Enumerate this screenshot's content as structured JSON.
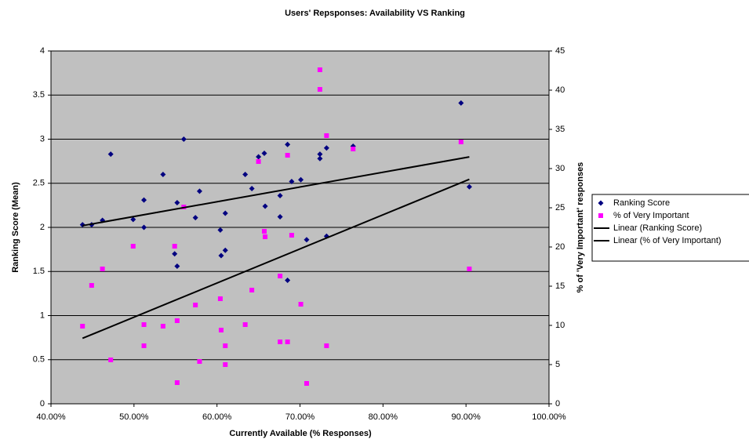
{
  "chart_data": {
    "type": "scatter",
    "title": "Users' Repsponses: Availability VS Ranking",
    "x_label": "Currently Available (% Responses)",
    "y_label": "Ranking Score (Mean)",
    "y2_label": "% of 'Very Important' responses",
    "x": [
      43.8,
      44.9,
      46.2,
      47.2,
      49.9,
      51.2,
      51.2,
      53.5,
      55.2,
      54.9,
      55.2,
      56.0,
      57.4,
      57.9,
      60.4,
      60.5,
      61.0,
      61.0,
      63.4,
      64.2,
      65.0,
      65.7,
      65.8,
      67.6,
      67.6,
      68.5,
      68.5,
      69.0,
      70.1,
      70.8,
      72.4,
      72.4,
      73.2,
      73.2,
      76.4,
      89.4,
      90.4
    ],
    "series": [
      {
        "name": "Ranking Score",
        "color": "#000080",
        "marker": "diamond",
        "values": [
          2.03,
          2.03,
          2.08,
          2.83,
          2.09,
          2.31,
          2.0,
          2.6,
          2.28,
          1.7,
          1.56,
          3.0,
          2.11,
          2.41,
          1.97,
          1.68,
          2.16,
          1.74,
          2.6,
          2.44,
          2.8,
          2.84,
          2.24,
          2.36,
          2.12,
          2.94,
          1.4,
          2.52,
          2.54,
          1.86,
          2.83,
          2.78,
          2.9,
          1.9,
          2.92,
          3.41,
          2.46
        ]
      },
      {
        "name": "% of Very Important",
        "color": "#ff00ff",
        "marker": "square",
        "axis": "y2",
        "values": [
          9.9,
          15.1,
          17.2,
          5.6,
          20.1,
          10.1,
          7.4,
          9.9,
          10.6,
          20.1,
          2.7,
          25.1,
          12.6,
          5.4,
          13.4,
          9.4,
          7.4,
          5.0,
          10.1,
          14.5,
          30.9,
          22.0,
          21.3,
          16.3,
          7.9,
          31.7,
          7.9,
          21.5,
          12.7,
          2.6,
          42.6,
          40.1,
          34.2,
          7.4,
          32.5,
          33.4,
          17.2
        ]
      }
    ],
    "trendlines": [
      {
        "name": "Linear (Ranking Score)",
        "series": 0,
        "color": "#000000"
      },
      {
        "name": "Linear (% of Very Important)",
        "series": 1,
        "color": "#000000"
      }
    ],
    "xlim": [
      40,
      100
    ],
    "xticks": [
      {
        "value": 40,
        "label": "40.00%"
      },
      {
        "value": 50,
        "label": "50.00%"
      },
      {
        "value": 60,
        "label": "60.00%"
      },
      {
        "value": 70,
        "label": "70.00%"
      },
      {
        "value": 80,
        "label": "80.00%"
      },
      {
        "value": 90,
        "label": "90.00%"
      },
      {
        "value": 100,
        "label": "100.00%"
      }
    ],
    "ylim": [
      0,
      4
    ],
    "yticks": [
      0,
      0.5,
      1,
      1.5,
      2,
      2.5,
      3,
      3.5,
      4
    ],
    "y2lim": [
      0,
      45
    ],
    "y2ticks": [
      0,
      5,
      10,
      15,
      20,
      25,
      30,
      35,
      40,
      45
    ],
    "grid": true,
    "legend": "right",
    "background": "#c0c0c0"
  }
}
